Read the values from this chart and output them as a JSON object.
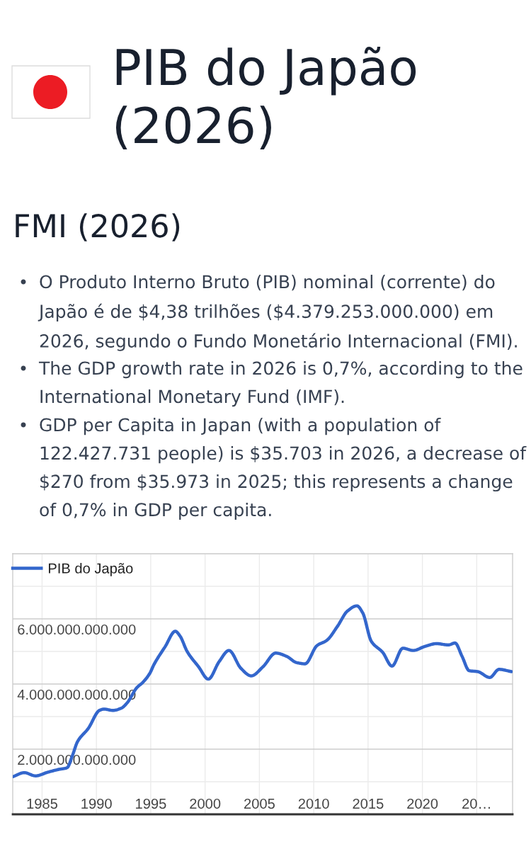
{
  "chart_data": {
    "type": "line",
    "title": "PIB do Japão (2026)",
    "subtitle": "FMI (2026)",
    "annotations": [
      "O Produto Interno Bruto (PIB) nominal (corrente) do Japão é de $4,38 trilhões ($4.379.253.000.000) em 2026, segundo o Fundo Monetário Internacional (FMI).",
      "The GDP growth rate in 2026 is 0,7%, according to the International Monetary Fund (IMF).",
      "GDP per Capita in Japan (with a population of 122.427.731 people) is $35.703 in 2026, a decrease of $270 from $35.973 in 2025; this represents a change of 0,7% in GDP per capita."
    ],
    "x": [
      1982.35,
      1983.36,
      1984.4,
      1985.5,
      1986.55,
      1987.3,
      1987.8,
      1988.26,
      1989.26,
      1990.28,
      1990.7,
      1991.5,
      1992.3,
      1992.85,
      1993.7,
      1994.3,
      1994.9,
      1995.3,
      1996.33,
      1997.26,
      1997.7,
      1998.35,
      1999.4,
      2000.3,
      2001.3,
      2002.2,
      2003.3,
      2004.25,
      2005.33,
      2006.5,
      2007.5,
      2008.4,
      2009.2,
      2010.3,
      2011.2,
      2012.2,
      2013.1,
      2013.97,
      2014.5,
      2015.3,
      2016.35,
      2017.2,
      2018.2,
      2019.15,
      2020.2,
      2021.3,
      2022.4,
      2023.0,
      2023.65,
      2024.3,
      2025.1,
      2026.2,
      2027.05,
      2028.2
    ],
    "series": [
      {
        "name": "PIB do Japão",
        "color": "#3366cc",
        "values": [
          1160000000000,
          1280000000000,
          1180000000000,
          1290000000000,
          1380000000000,
          1430000000000,
          1810000000000,
          2230000000000,
          2640000000000,
          3190000000000,
          3230000000000,
          3190000000000,
          3260000000000,
          3430000000000,
          3880000000000,
          4060000000000,
          4320000000000,
          4600000000000,
          5150000000000,
          5620000000000,
          5470000000000,
          5000000000000,
          4530000000000,
          4150000000000,
          4690000000000,
          5030000000000,
          4480000000000,
          4250000000000,
          4530000000000,
          4950000000000,
          4850000000000,
          4660000000000,
          4620000000000,
          5180000000000,
          5340000000000,
          5780000000000,
          6240000000000,
          6400000000000,
          6190000000000,
          5310000000000,
          4970000000000,
          4550000000000,
          5100000000000,
          5030000000000,
          5150000000000,
          5240000000000,
          5200000000000,
          5260000000000,
          4850000000000,
          4410000000000,
          4380000000000,
          4200000000000,
          4450000000000,
          4380000000000
        ]
      }
    ],
    "xlim": [
      1982.3,
      2028.3
    ],
    "xticks": [
      1985,
      1990,
      1995,
      2000,
      2005,
      2010,
      2015,
      2020,
      {
        "value": 2025,
        "label": "20…"
      }
    ],
    "ylim": [
      0,
      8000000000000
    ],
    "yticks": [
      {
        "value": 0,
        "label": null
      },
      {
        "value": 1000000000000,
        "label": null
      },
      {
        "value": 2000000000000,
        "label": "2.000.000.000.000"
      },
      {
        "value": 3000000000000,
        "label": null
      },
      {
        "value": 4000000000000,
        "label": "4.000.000.000.000"
      },
      {
        "value": 5000000000000,
        "label": null
      },
      {
        "value": 6000000000000,
        "label": "6.000.000.000.000"
      },
      {
        "value": 7000000000000,
        "label": null
      },
      {
        "value": 8000000000000,
        "label": null
      }
    ],
    "grid": true,
    "legend": "top left"
  }
}
